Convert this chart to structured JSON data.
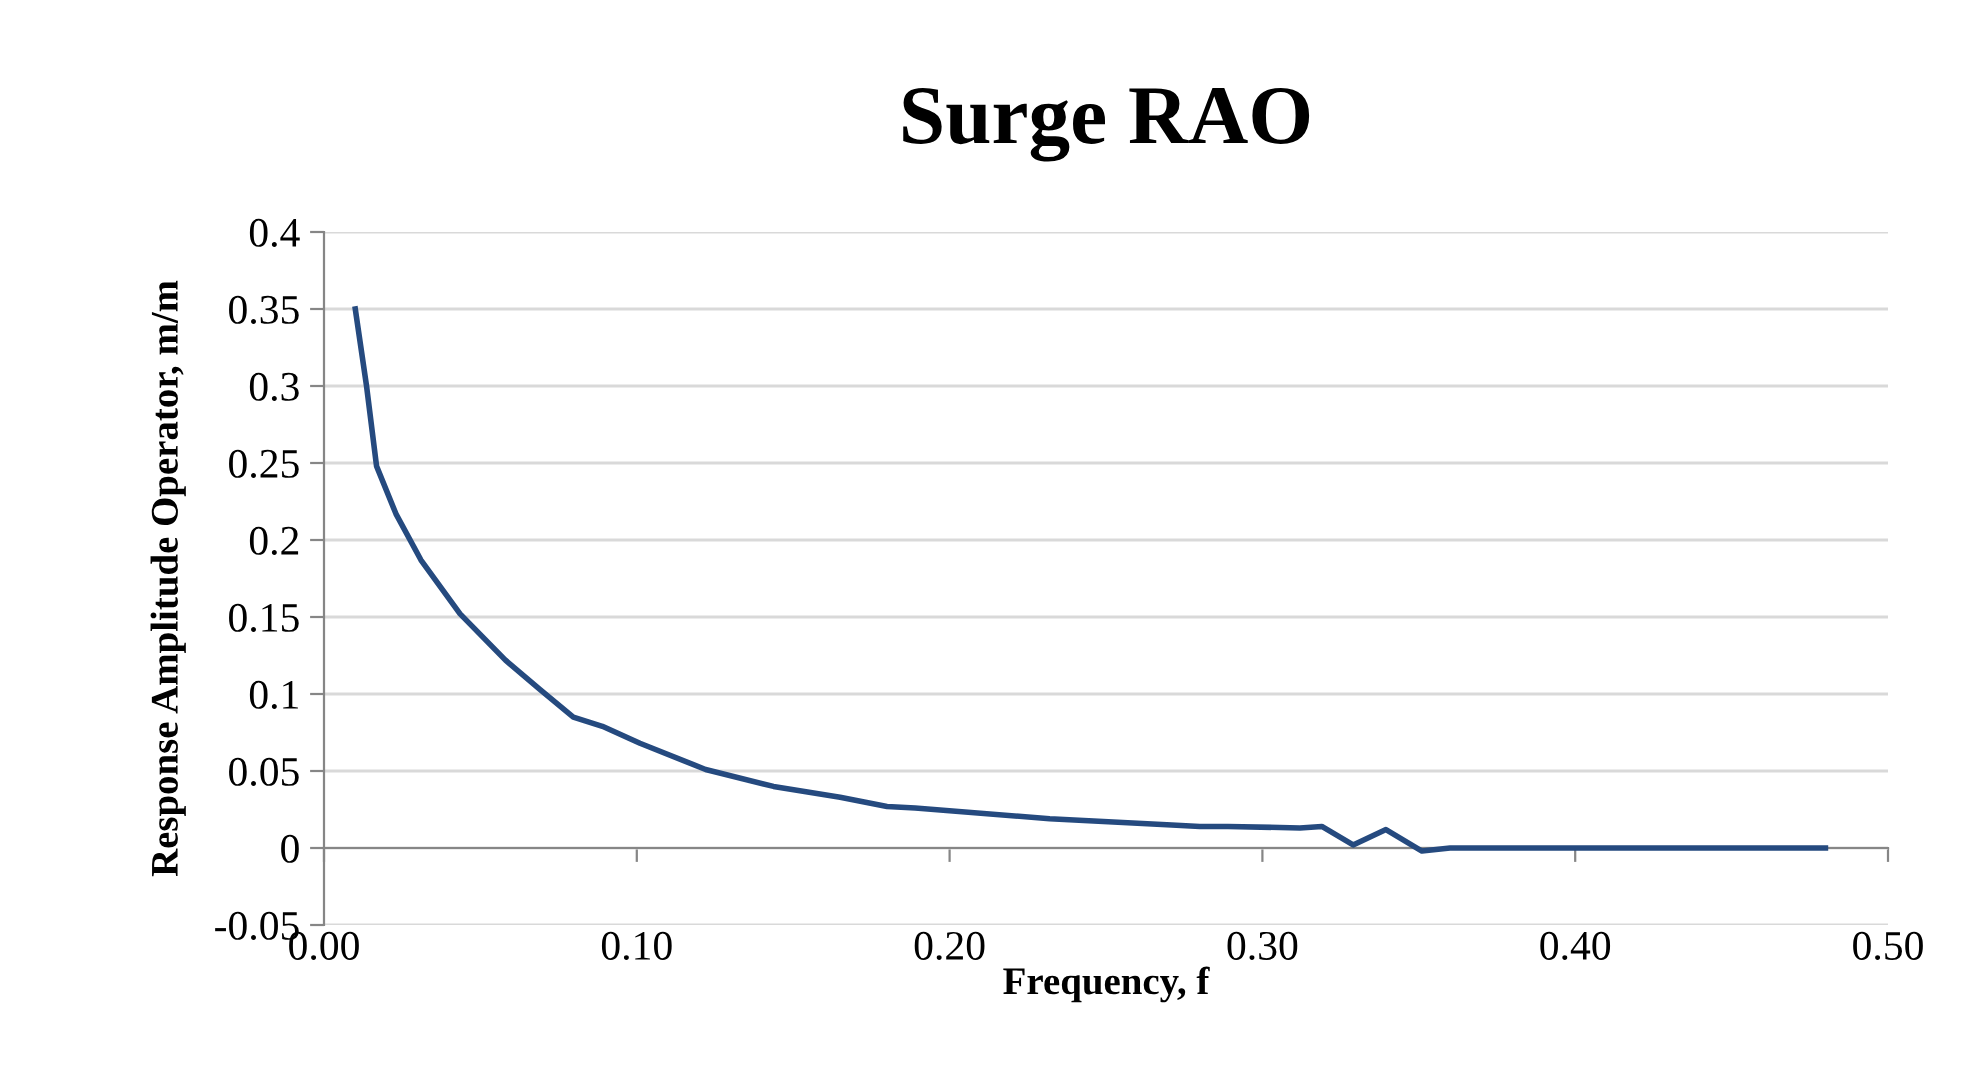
{
  "chart_data": {
    "type": "line",
    "title": "Surge RAO",
    "xlabel": "Frequency, f",
    "ylabel": "Response Amplitude Operator, m/m",
    "x": [
      0.01,
      0.0136,
      0.0168,
      0.023,
      0.031,
      0.0435,
      0.058,
      0.069,
      0.0797,
      0.089,
      0.101,
      0.122,
      0.1437,
      0.165,
      0.18,
      0.189,
      0.232,
      0.271,
      0.28,
      0.289,
      0.312,
      0.319,
      0.329,
      0.3395,
      0.351,
      0.36,
      0.48
    ],
    "series": [
      {
        "color": "#254a7f",
        "values": [
          0.35,
          0.3,
          0.248,
          0.217,
          0.187,
          0.152,
          0.122,
          0.103,
          0.085,
          0.079,
          0.068,
          0.051,
          0.04,
          0.033,
          0.027,
          0.026,
          0.019,
          0.015,
          0.014,
          0.014,
          0.013,
          0.014,
          0.002,
          0.012,
          -0.002,
          0,
          0
        ]
      }
    ],
    "xlim": [
      0,
      0.5
    ],
    "ylim": [
      -0.05,
      0.4
    ],
    "xticks": [
      {
        "value": 0,
        "label": "0.00"
      },
      {
        "value": 0.1,
        "label": "0.10"
      },
      {
        "value": 0.2,
        "label": "0.20"
      },
      {
        "value": 0.3,
        "label": "0.30"
      },
      {
        "value": 0.4,
        "label": "0.40"
      },
      {
        "value": 0.5,
        "label": "0.50"
      }
    ],
    "yticks": [
      -0.05,
      0,
      0.05,
      0.1,
      0.15,
      0.2,
      0.25,
      0.3,
      0.35,
      0.4
    ],
    "grid": "y",
    "marker": "none",
    "line_style": "solid"
  }
}
